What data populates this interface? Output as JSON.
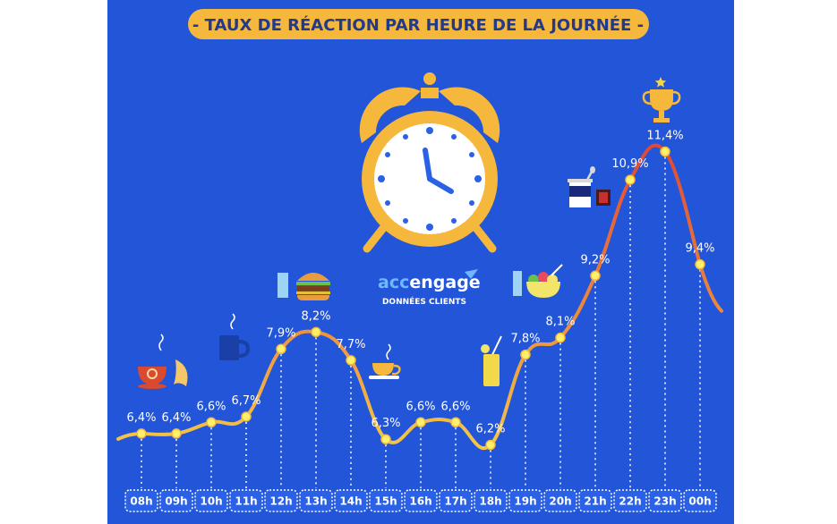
{
  "title": "- TAUX DE RÉACTION PAR HEURE DE LA JOURNÉE -",
  "brand": {
    "name_part1": "acc",
    "name_part2": "engage",
    "tagline": "DONNÉES CLIENTS"
  },
  "colors": {
    "background": "#2255d8",
    "title_banner": "#f5b83c",
    "curve_low": "#f3c74a",
    "curve_high": "#e0553a",
    "tick_box": "#2a61e6",
    "point": "#fff06a"
  },
  "icons": {
    "08h": "coffee-croissant-icon",
    "11h": "mug-icon",
    "12h": "glass-burger-icon",
    "15h": "teacup-icon",
    "18h": "juice-glass-icon",
    "19h": "glass-salad-icon",
    "21h": "yogurt-icon",
    "23h": "trophy-icon"
  },
  "chart_data": {
    "type": "line",
    "title": "- TAUX DE RÉACTION PAR HEURE DE LA JOURNÉE -",
    "categories": [
      "08h",
      "09h",
      "10h",
      "11h",
      "12h",
      "13h",
      "14h",
      "15h",
      "16h",
      "17h",
      "18h",
      "19h",
      "20h",
      "21h",
      "22h",
      "23h",
      "00h"
    ],
    "values": [
      6.4,
      6.4,
      6.6,
      6.7,
      7.9,
      8.2,
      7.7,
      6.3,
      6.6,
      6.6,
      6.2,
      7.8,
      8.1,
      9.2,
      10.9,
      11.4,
      9.4
    ],
    "labels": [
      "6,4%",
      "6,4%",
      "6,6%",
      "6,7%",
      "7,9%",
      "8,2%",
      "7,7%",
      "6,3%",
      "6,6%",
      "6,6%",
      "6,2%",
      "7,8%",
      "8,1%",
      "9,2%",
      "10,9%",
      "11,4%",
      "9,4%"
    ],
    "unit": "%",
    "grid": false,
    "legend": "none"
  }
}
